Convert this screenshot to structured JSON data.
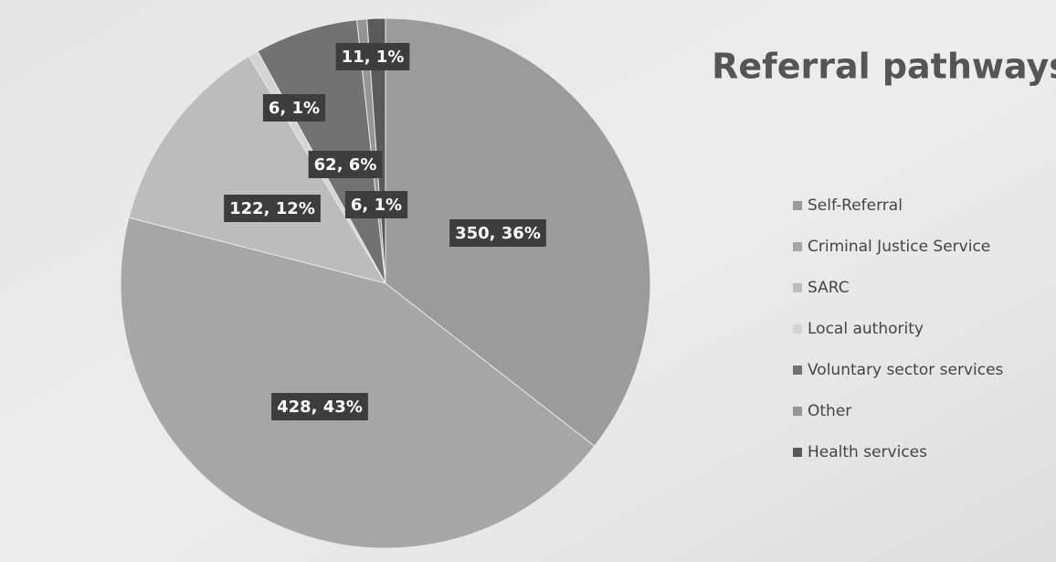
{
  "chart_data": {
    "type": "pie",
    "title": "Referral pathways",
    "categories": [
      "Self-Referral",
      "Criminal Justice Service",
      "SARC",
      "Local authority",
      "Voluntary sector services",
      "Other",
      "Health services"
    ],
    "values": [
      350,
      428,
      122,
      6,
      62,
      6,
      11
    ],
    "value_labels": [
      "350, 36%",
      "428, 43%",
      "122, 12%",
      "6, 1%",
      "62, 6%",
      "6, 1%",
      "11, 1%"
    ],
    "colors": [
      "#9b9b9b",
      "#a6a6a6",
      "#bcbcbc",
      "#d4d4d4",
      "#727272",
      "#959595",
      "#5a5a5a"
    ],
    "legend": "right"
  }
}
